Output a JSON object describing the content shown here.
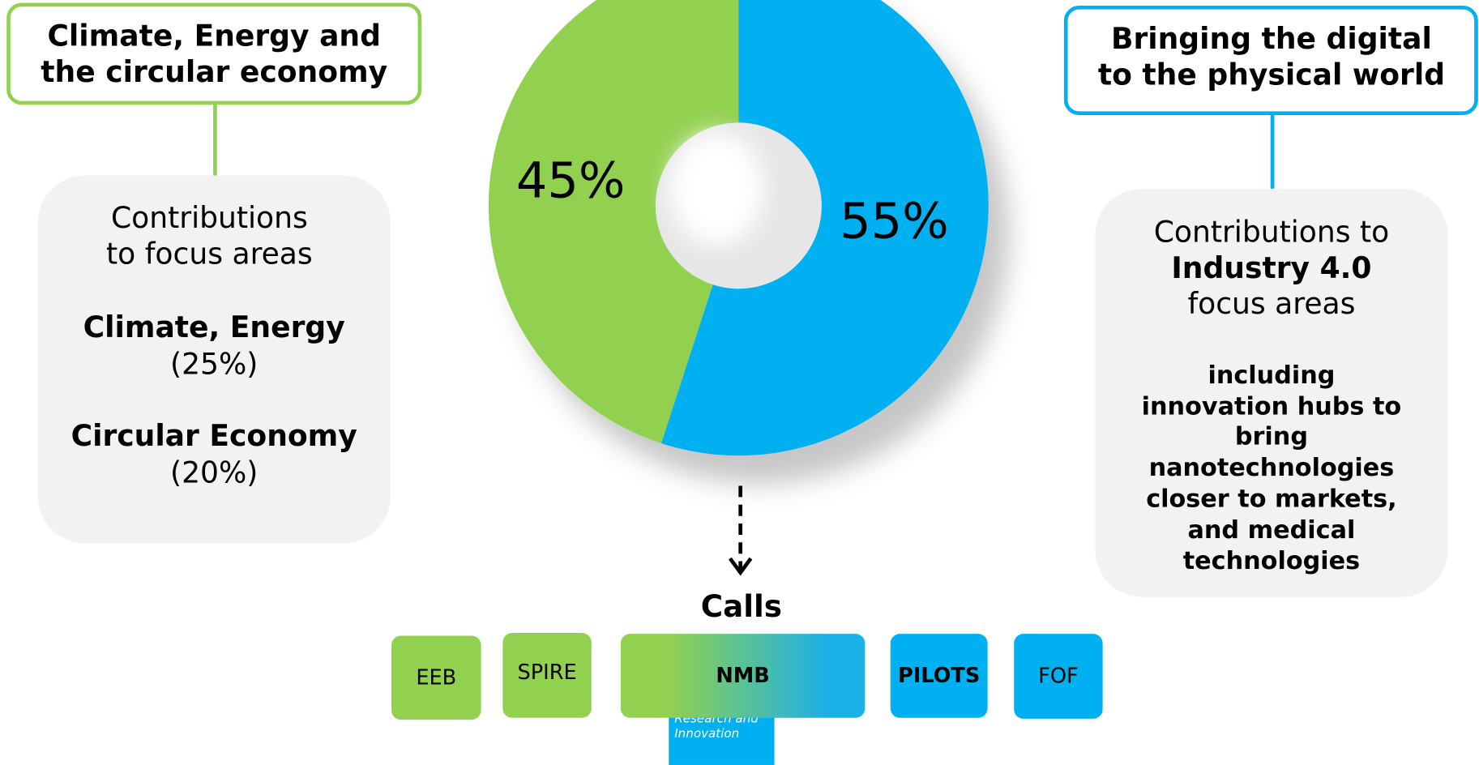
{
  "chart_data": {
    "type": "donut",
    "values": [
      45,
      55
    ],
    "value_labels": [
      "45%",
      "55%"
    ],
    "colors": [
      "#92d050",
      "#00b0f0"
    ]
  },
  "left": {
    "title": [
      "Climate, Energy and",
      "the circular economy"
    ],
    "intro": [
      "Contributions",
      "to focus areas"
    ],
    "items": [
      {
        "name": "Climate, Energy",
        "share": "(25%)"
      },
      {
        "name": "Circular Economy",
        "share": "(20%)"
      }
    ]
  },
  "right": {
    "title": [
      "Bringing the digital",
      "to the physical world"
    ],
    "intro": [
      "Contributions to",
      "Industry 4.0",
      "focus areas"
    ],
    "details": [
      "including",
      "innovation hubs to",
      "bring",
      "nanotechnologies",
      "closer to markets,",
      "and medical",
      "technologies"
    ]
  },
  "calls": {
    "title": "Calls",
    "items": [
      "EEB",
      "SPIRE",
      "NMB",
      "PILOTS",
      "FOF"
    ],
    "note": [
      "Research and",
      "Innovation"
    ]
  }
}
